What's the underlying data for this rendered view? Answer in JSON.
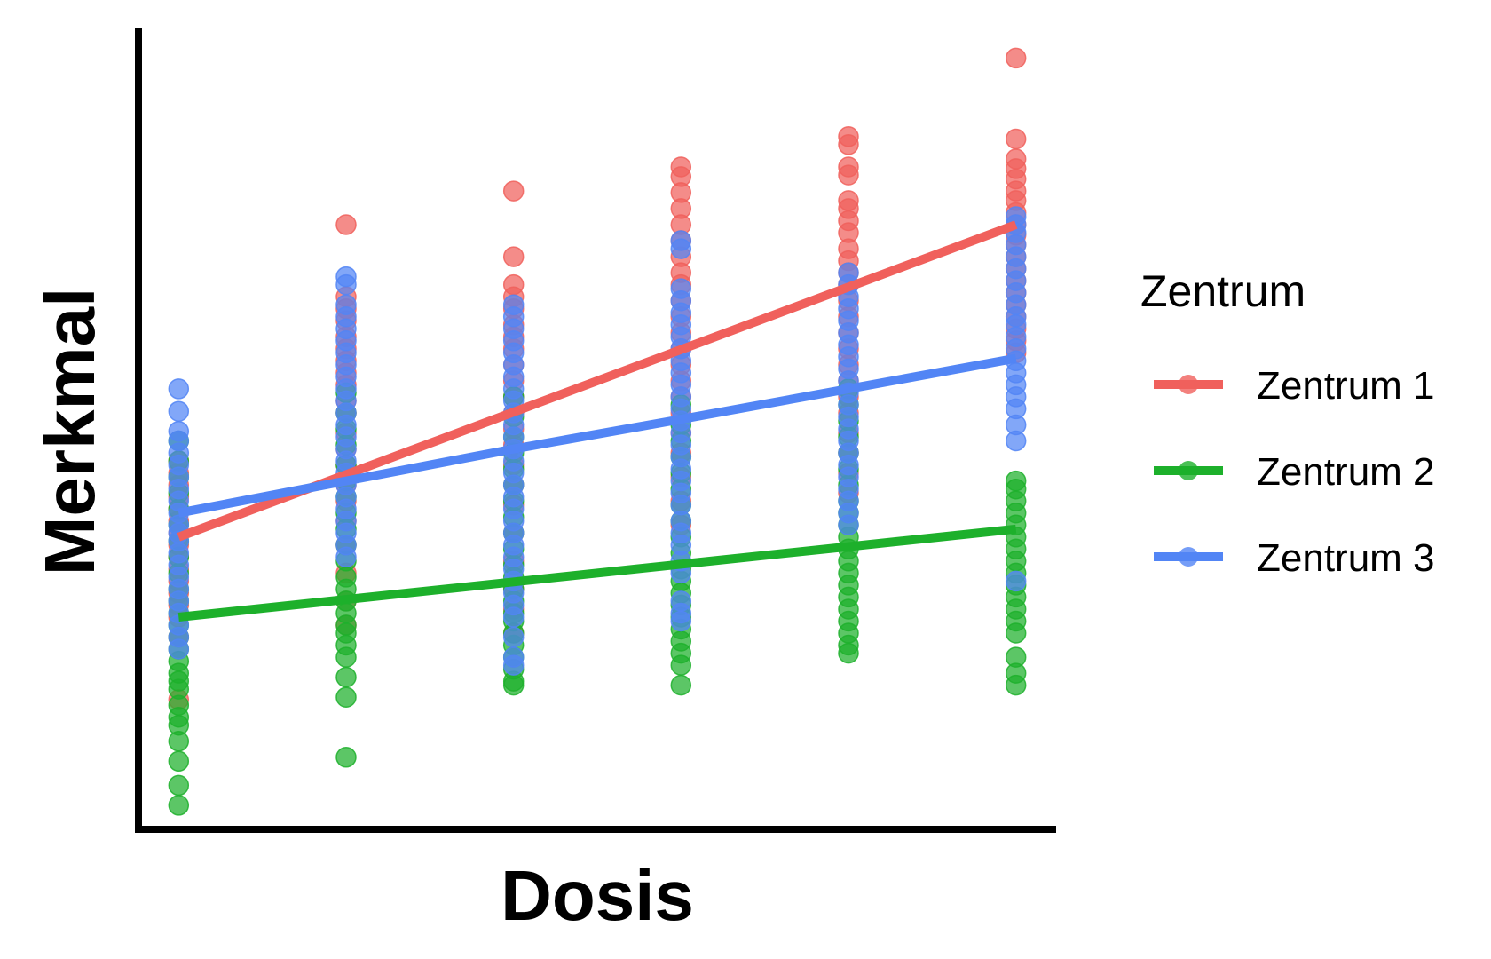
{
  "chart_data": {
    "type": "scatter",
    "title": "",
    "xlabel": "Dosis",
    "ylabel": "Merkmal",
    "x_ticks_shown": false,
    "y_ticks_shown": false,
    "grid": false,
    "x": [
      1,
      2,
      3,
      4,
      5,
      6
    ],
    "xlim": [
      0.76,
      6.24
    ],
    "ylim": [
      0.0,
      10.0
    ],
    "legend": {
      "title": "Zentrum",
      "placement": "right"
    },
    "series": [
      {
        "name": "Zentrum 1",
        "color": "#F0605C",
        "trend": [
          3.65,
          4.43,
          5.21,
          5.99,
          6.77,
          7.55
        ],
        "points": [
          [
            [
              1,
              4.6
            ],
            [
              1,
              4.45
            ],
            [
              1,
              4.3
            ],
            [
              1,
              4.15
            ],
            [
              1,
              4.0
            ],
            [
              1,
              3.85
            ],
            [
              1,
              3.7
            ],
            [
              1,
              3.55
            ],
            [
              1,
              3.4
            ],
            [
              1,
              3.25
            ],
            [
              1,
              3.1
            ],
            [
              1,
              2.95
            ],
            [
              1,
              2.8
            ],
            [
              1,
              2.65
            ],
            [
              1,
              2.4
            ],
            [
              1,
              1.62
            ]
          ]
        ],
        "points_by_x": {
          "1": [
            4.6,
            4.45,
            4.3,
            4.15,
            4.0,
            3.85,
            3.7,
            3.55,
            3.4,
            3.25,
            3.1,
            2.95,
            2.8,
            2.65,
            2.4,
            1.62
          ],
          "2": [
            7.55,
            6.65,
            6.5,
            6.35,
            6.15,
            6.0,
            5.85,
            5.7,
            5.55,
            5.35,
            5.2,
            4.95,
            4.75,
            4.55,
            4.3,
            4.1,
            3.85,
            3.55,
            3.2,
            2.85,
            2.55
          ],
          "3": [
            7.97,
            7.15,
            6.8,
            6.65,
            6.5,
            6.3,
            6.15,
            6.0,
            5.8,
            5.6,
            5.4,
            5.2,
            5.0,
            4.8,
            4.55,
            4.3,
            4.05,
            3.7,
            3.35,
            3.0,
            2.75,
            2.45
          ],
          "4": [
            8.27,
            8.15,
            7.95,
            7.75,
            7.55,
            7.35,
            7.15,
            6.95,
            6.8,
            6.6,
            6.4,
            6.2,
            6.0,
            5.8,
            5.6,
            5.4,
            5.2,
            4.95,
            4.7,
            4.4,
            4.1,
            3.8
          ],
          "5": [
            8.65,
            8.55,
            8.27,
            8.17,
            7.85,
            7.75,
            7.6,
            7.45,
            7.25,
            7.1,
            6.95,
            6.8,
            6.6,
            6.4,
            6.2,
            6.0,
            5.8,
            5.6,
            5.4,
            5.2,
            4.95,
            4.7,
            4.45,
            4.2
          ],
          "6": [
            9.63,
            8.62,
            8.37,
            8.25,
            8.12,
            7.97,
            7.85,
            7.7,
            7.55,
            7.42,
            7.3,
            7.15,
            7.0,
            6.85,
            6.7,
            6.55,
            6.4,
            6.25,
            6.1,
            5.95
          ]
        }
      },
      {
        "name": "Zentrum 2",
        "color": "#1DB02B",
        "trend": [
          2.65,
          2.87,
          3.09,
          3.31,
          3.53,
          3.75
        ],
        "points_by_x": {
          "1": [
            4.85,
            4.6,
            4.4,
            4.2,
            4.0,
            3.8,
            3.6,
            3.4,
            3.2,
            3.0,
            2.85,
            2.7,
            2.55,
            2.4,
            2.25,
            2.1,
            1.95,
            1.85,
            1.75,
            1.55,
            1.4,
            1.3,
            1.1,
            0.85,
            0.55,
            0.3
          ],
          "2": [
            5.45,
            5.2,
            5.0,
            4.8,
            4.55,
            4.35,
            4.15,
            3.95,
            3.75,
            3.55,
            3.35,
            3.15,
            3.0,
            2.85,
            2.7,
            2.55,
            2.45,
            2.3,
            2.15,
            1.9,
            1.65,
            0.9
          ],
          "3": [
            5.4,
            5.15,
            4.9,
            4.7,
            4.5,
            4.3,
            4.1,
            3.9,
            3.7,
            3.5,
            3.3,
            3.15,
            3.0,
            2.85,
            2.7,
            2.6,
            2.45,
            2.3,
            2.15,
            2.0,
            1.85,
            1.8
          ],
          "4": [
            5.3,
            5.05,
            4.85,
            4.65,
            4.45,
            4.25,
            4.05,
            3.85,
            3.65,
            3.45,
            3.25,
            3.1,
            2.95,
            2.8,
            2.65,
            2.5,
            2.35,
            2.2,
            2.05,
            1.8
          ],
          "5": [
            5.5,
            5.3,
            5.1,
            4.9,
            4.7,
            4.5,
            4.3,
            4.1,
            3.95,
            3.8,
            3.65,
            3.5,
            3.35,
            3.2,
            3.05,
            2.9,
            2.75,
            2.6,
            2.45,
            2.3,
            2.2
          ],
          "6": [
            4.35,
            4.25,
            4.1,
            3.95,
            3.8,
            3.65,
            3.5,
            3.35,
            3.2,
            3.05,
            2.9,
            2.75,
            2.6,
            2.45,
            2.15,
            1.95,
            1.8
          ]
        }
      },
      {
        "name": "Zentrum 3",
        "color": "#5285F5",
        "trend": [
          3.95,
          4.35,
          4.75,
          5.12,
          5.5,
          5.88
        ],
        "points_by_x": {
          "1": [
            5.5,
            5.22,
            4.97,
            4.85,
            4.7,
            4.55,
            4.4,
            4.25,
            4.1,
            3.95,
            3.8,
            3.7,
            3.6,
            3.45,
            3.3,
            3.15,
            3.0,
            2.85,
            2.7,
            2.55,
            2.4,
            2.25
          ],
          "2": [
            6.9,
            6.8,
            6.55,
            6.4,
            6.25,
            6.1,
            5.95,
            5.8,
            5.65,
            5.5,
            5.35,
            5.2,
            5.05,
            4.9,
            4.75,
            4.6,
            4.45,
            4.3,
            4.15,
            4.0,
            3.85,
            3.7,
            3.55,
            3.4
          ],
          "3": [
            6.55,
            6.4,
            6.25,
            6.1,
            5.95,
            5.8,
            5.65,
            5.5,
            5.35,
            5.2,
            5.05,
            4.9,
            4.75,
            4.6,
            4.45,
            4.3,
            4.15,
            4.0,
            3.85,
            3.7,
            3.55,
            3.4,
            3.25,
            3.1,
            2.95,
            2.8,
            2.65,
            2.4,
            2.15,
            2.05
          ],
          "4": [
            7.35,
            7.25,
            6.75,
            6.6,
            6.45,
            6.3,
            6.15,
            6.0,
            5.85,
            5.7,
            5.55,
            5.4,
            5.25,
            5.1,
            4.95,
            4.8,
            4.65,
            4.5,
            4.35,
            4.2,
            4.05,
            3.85,
            3.7,
            3.55,
            3.35,
            3.2,
            2.85,
            2.7,
            2.6
          ],
          "5": [
            6.95,
            6.8,
            6.65,
            6.5,
            6.35,
            6.2,
            6.05,
            5.9,
            5.75,
            5.6,
            5.45,
            5.3,
            5.15,
            5.0,
            4.85,
            4.7,
            4.55,
            4.4,
            4.25,
            4.1,
            3.95,
            3.8
          ],
          "6": [
            7.65,
            7.55,
            7.45,
            7.3,
            7.15,
            7.0,
            6.85,
            6.7,
            6.55,
            6.4,
            6.3,
            6.15,
            6.0,
            5.85,
            5.7,
            5.55,
            5.4,
            5.25,
            5.05,
            4.85,
            3.1
          ]
        }
      }
    ]
  }
}
